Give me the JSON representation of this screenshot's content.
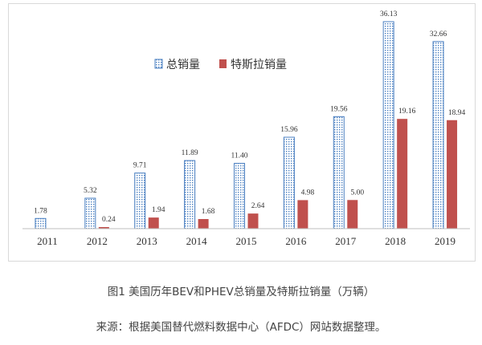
{
  "chart_data": {
    "type": "bar",
    "categories": [
      "2011",
      "2012",
      "2013",
      "2014",
      "2015",
      "2016",
      "2017",
      "2018",
      "2019"
    ],
    "series": [
      {
        "name": "总销量",
        "values": [
          1.78,
          5.32,
          9.71,
          11.89,
          11.4,
          15.96,
          19.56,
          36.13,
          32.66
        ],
        "labels": [
          "1.78",
          "5.32",
          "9.71",
          "11.89",
          "11.40",
          "15.96",
          "19.56",
          "36.13",
          "32.66"
        ]
      },
      {
        "name": "特斯拉销量",
        "values": [
          0,
          0.24,
          1.94,
          1.68,
          2.64,
          4.98,
          5.0,
          19.16,
          18.94
        ],
        "labels": [
          "",
          "0.24",
          "1.94",
          "1.68",
          "2.64",
          "4.98",
          "5.00",
          "19.16",
          "18.94"
        ]
      }
    ],
    "ylim": [
      0,
      36.13
    ],
    "grid": false,
    "legend_position": "top-left",
    "colors": {
      "total_pattern": "#4a7fc1",
      "tesla": "#c0504d",
      "axis": "#bfbfbf",
      "text": "#333333"
    }
  },
  "caption": "图1 美国历年BEV和PHEV总销量及特斯拉销量（万辆）",
  "source": "来源：根据美国替代燃料数据中心（AFDC）网站数据整理。"
}
